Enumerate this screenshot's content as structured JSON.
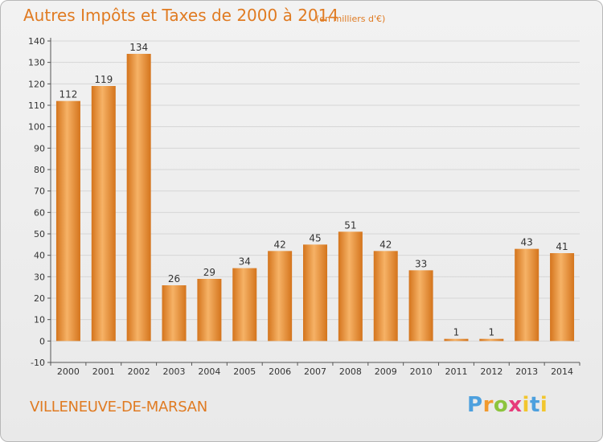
{
  "header": {
    "title": "Autres Impôts et Taxes de 2000 à 2014",
    "subtitle": "(en milliers d'€)"
  },
  "footer": {
    "commune": "VILLENEUVE-DE-MARSAN",
    "logo_text": "Proxiti",
    "logo_colors": [
      "#4da0de",
      "#f29a2e",
      "#8cc43d",
      "#e63b7a",
      "#f2c62e",
      "#4da0de"
    ]
  },
  "colors": {
    "bar": "#f0913a",
    "bar_light": "#f6b266",
    "bar_dark": "#d4741c",
    "accent": "#e07b22",
    "grid": "#d6d6d6"
  },
  "chart_data": {
    "type": "bar",
    "title": "Autres Impôts et Taxes de 2000 à 2014",
    "subtitle": "(en milliers d'€)",
    "categories": [
      "2000",
      "2001",
      "2002",
      "2003",
      "2004",
      "2005",
      "2006",
      "2007",
      "2008",
      "2009",
      "2010",
      "2011",
      "2012",
      "2013",
      "2014"
    ],
    "values": [
      112,
      119,
      134,
      26,
      29,
      34,
      42,
      45,
      51,
      42,
      33,
      1,
      1,
      43,
      41
    ],
    "ylim": [
      -10,
      140
    ],
    "yticks": [
      -10,
      0,
      10,
      20,
      30,
      40,
      50,
      60,
      70,
      80,
      90,
      100,
      110,
      120,
      130,
      140
    ],
    "grid": true,
    "xlabel": "",
    "ylabel": ""
  }
}
